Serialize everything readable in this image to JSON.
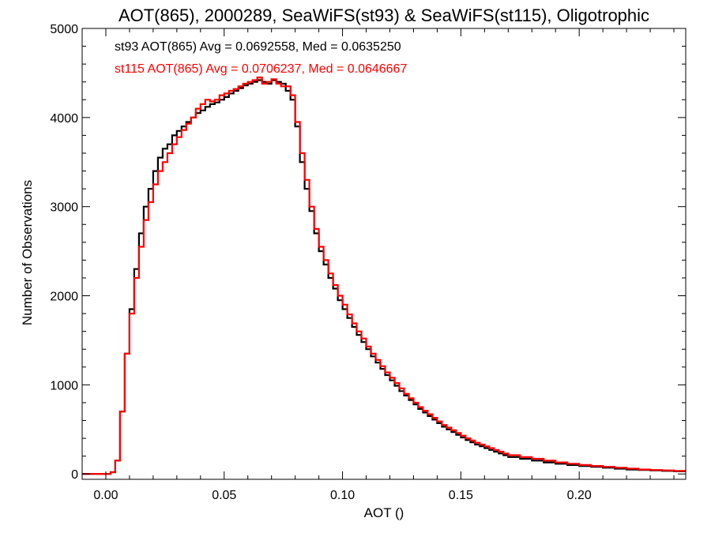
{
  "chart_data": {
    "type": "line",
    "step": "histogram",
    "title": "AOT(865), 2000289, SeaWiFS(st93) & SeaWiFS(st115), Oligotrophic",
    "xlabel": "AOT ()",
    "ylabel": "Number of Observations",
    "xlim": [
      -0.01,
      0.245
    ],
    "ylim": [
      -60,
      5000
    ],
    "xticks": [
      0.0,
      0.05,
      0.1,
      0.15,
      0.2
    ],
    "xtick_labels": [
      "0.00",
      "0.05",
      "0.10",
      "0.15",
      "0.20"
    ],
    "yticks": [
      0,
      1000,
      2000,
      3000,
      4000,
      5000
    ],
    "ytick_labels": [
      "0",
      "1000",
      "2000",
      "3000",
      "4000",
      "5000"
    ],
    "grid": false,
    "legend_placement": "top-left inside",
    "series": [
      {
        "name": "st93",
        "color": "#000000",
        "annotation": "st93 AOT(865) Avg = 0.0692558, Med = 0.0635250",
        "x": [
          -0.01,
          0.0,
          0.002,
          0.004,
          0.006,
          0.008,
          0.01,
          0.012,
          0.014,
          0.016,
          0.018,
          0.02,
          0.022,
          0.024,
          0.026,
          0.028,
          0.03,
          0.032,
          0.034,
          0.036,
          0.038,
          0.04,
          0.042,
          0.044,
          0.046,
          0.048,
          0.05,
          0.052,
          0.054,
          0.056,
          0.058,
          0.06,
          0.062,
          0.064,
          0.066,
          0.068,
          0.07,
          0.072,
          0.074,
          0.076,
          0.078,
          0.08,
          0.082,
          0.084,
          0.086,
          0.088,
          0.09,
          0.092,
          0.094,
          0.096,
          0.098,
          0.1,
          0.102,
          0.104,
          0.106,
          0.108,
          0.11,
          0.112,
          0.114,
          0.116,
          0.118,
          0.12,
          0.122,
          0.124,
          0.126,
          0.128,
          0.13,
          0.132,
          0.134,
          0.136,
          0.138,
          0.14,
          0.142,
          0.144,
          0.146,
          0.148,
          0.15,
          0.152,
          0.154,
          0.156,
          0.158,
          0.16,
          0.162,
          0.164,
          0.166,
          0.168,
          0.17,
          0.175,
          0.18,
          0.185,
          0.19,
          0.195,
          0.2,
          0.205,
          0.21,
          0.215,
          0.22,
          0.225,
          0.23,
          0.235,
          0.24,
          0.245
        ],
        "y": [
          0,
          0,
          20,
          150,
          700,
          1350,
          1850,
          2300,
          2700,
          3000,
          3200,
          3400,
          3550,
          3650,
          3700,
          3800,
          3850,
          3900,
          3950,
          4000,
          4050,
          4080,
          4120,
          4150,
          4170,
          4200,
          4230,
          4270,
          4300,
          4330,
          4360,
          4380,
          4400,
          4420,
          4400,
          4380,
          4420,
          4400,
          4380,
          4300,
          4200,
          3900,
          3500,
          3200,
          2950,
          2700,
          2500,
          2350,
          2200,
          2080,
          1950,
          1850,
          1750,
          1650,
          1560,
          1480,
          1400,
          1320,
          1250,
          1180,
          1110,
          1050,
          990,
          930,
          880,
          830,
          780,
          730,
          690,
          650,
          610,
          570,
          530,
          500,
          470,
          440,
          410,
          380,
          355,
          330,
          310,
          290,
          270,
          250,
          230,
          210,
          190,
          170,
          150,
          130,
          115,
          100,
          90,
          80,
          70,
          60,
          50,
          45,
          40,
          35,
          30,
          25
        ]
      },
      {
        "name": "st115",
        "color": "#ff0000",
        "annotation": "st115 AOT(865) Avg = 0.0706237, Med = 0.0646667",
        "x": [
          -0.01,
          0.0,
          0.002,
          0.004,
          0.006,
          0.008,
          0.01,
          0.012,
          0.014,
          0.016,
          0.018,
          0.02,
          0.022,
          0.024,
          0.026,
          0.028,
          0.03,
          0.032,
          0.034,
          0.036,
          0.038,
          0.04,
          0.042,
          0.044,
          0.046,
          0.048,
          0.05,
          0.052,
          0.054,
          0.056,
          0.058,
          0.06,
          0.062,
          0.064,
          0.066,
          0.068,
          0.07,
          0.072,
          0.074,
          0.076,
          0.078,
          0.08,
          0.082,
          0.084,
          0.086,
          0.088,
          0.09,
          0.092,
          0.094,
          0.096,
          0.098,
          0.1,
          0.102,
          0.104,
          0.106,
          0.108,
          0.11,
          0.112,
          0.114,
          0.116,
          0.118,
          0.12,
          0.122,
          0.124,
          0.126,
          0.128,
          0.13,
          0.132,
          0.134,
          0.136,
          0.138,
          0.14,
          0.142,
          0.144,
          0.146,
          0.148,
          0.15,
          0.152,
          0.154,
          0.156,
          0.158,
          0.16,
          0.162,
          0.164,
          0.166,
          0.168,
          0.17,
          0.175,
          0.18,
          0.185,
          0.19,
          0.195,
          0.2,
          0.205,
          0.21,
          0.215,
          0.22,
          0.225,
          0.23,
          0.235,
          0.24,
          0.245
        ],
        "y": [
          0,
          0,
          20,
          150,
          700,
          1350,
          1800,
          2200,
          2550,
          2850,
          3050,
          3250,
          3400,
          3500,
          3600,
          3700,
          3780,
          3860,
          3930,
          4000,
          4100,
          4150,
          4200,
          4180,
          4200,
          4250,
          4270,
          4300,
          4320,
          4350,
          4380,
          4400,
          4420,
          4450,
          4380,
          4400,
          4430,
          4380,
          4350,
          4350,
          4250,
          3950,
          3600,
          3300,
          3000,
          2750,
          2550,
          2400,
          2250,
          2120,
          2000,
          1900,
          1790,
          1690,
          1600,
          1520,
          1430,
          1350,
          1280,
          1210,
          1140,
          1080,
          1020,
          960,
          900,
          850,
          800,
          750,
          710,
          670,
          630,
          590,
          550,
          520,
          490,
          460,
          430,
          400,
          375,
          350,
          330,
          310,
          290,
          270,
          250,
          230,
          210,
          190,
          170,
          150,
          130,
          115,
          100,
          90,
          80,
          70,
          60,
          50,
          45,
          40,
          35,
          30
        ]
      }
    ]
  }
}
